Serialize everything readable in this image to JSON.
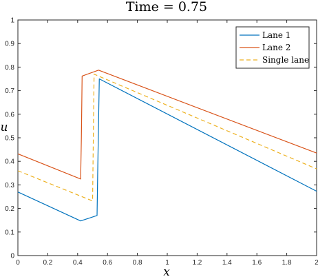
{
  "chart_data": {
    "type": "line",
    "title": "Time = 0.75",
    "xlabel": "x",
    "ylabel": "u",
    "xlim": [
      0,
      2
    ],
    "ylim": [
      0,
      1
    ],
    "xticks": [
      "0",
      "0.2",
      "0.4",
      "0.6",
      "0.8",
      "1",
      "1.2",
      "1.4",
      "1.6",
      "1.8",
      "2"
    ],
    "yticks": [
      "0",
      "0.1",
      "0.2",
      "0.3",
      "0.4",
      "0.5",
      "0.6",
      "0.7",
      "0.8",
      "0.9",
      "1"
    ],
    "grid": false,
    "legend_position": "top-right",
    "series": [
      {
        "name": "Lane 1",
        "color": "#0072BD",
        "dash": "solid",
        "x": [
          0,
          0.42,
          0.53,
          0.535,
          0.545,
          2.0
        ],
        "y": [
          0.27,
          0.147,
          0.17,
          0.38,
          0.75,
          0.273
        ]
      },
      {
        "name": "Lane 2",
        "color": "#D95319",
        "dash": "solid",
        "x": [
          0,
          0.42,
          0.425,
          0.43,
          0.54,
          2.0
        ],
        "y": [
          0.432,
          0.325,
          0.5,
          0.762,
          0.787,
          0.435
        ]
      },
      {
        "name": "Single lane",
        "color": "#EDB120",
        "dash": "dashed",
        "x": [
          0,
          0.5,
          0.505,
          0.51,
          2.0
        ],
        "y": [
          0.36,
          0.232,
          0.5,
          0.77,
          0.368
        ]
      }
    ]
  }
}
